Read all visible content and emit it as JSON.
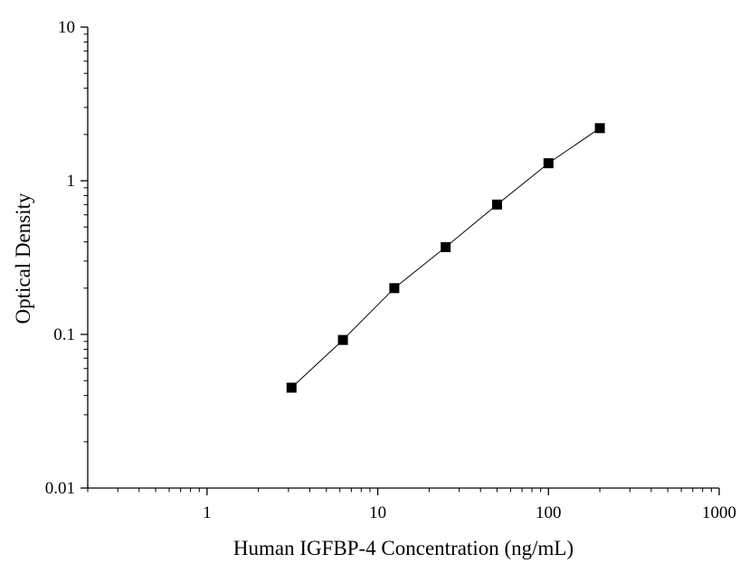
{
  "chart_data": {
    "type": "scatter",
    "xlabel": "Human IGFBP-4 Concentration (ng/mL)",
    "ylabel": "Optical Density",
    "x_scale": "log",
    "y_scale": "log",
    "xlim": [
      0.2,
      1000
    ],
    "ylim": [
      0.01,
      10
    ],
    "x_ticks": [
      {
        "value": 1,
        "label": "1"
      },
      {
        "value": 10,
        "label": "10"
      },
      {
        "value": 100,
        "label": "100"
      },
      {
        "value": 1000,
        "label": "1000"
      }
    ],
    "y_ticks": [
      {
        "value": 0.01,
        "label": "0.01"
      },
      {
        "value": 0.1,
        "label": "0.1"
      },
      {
        "value": 1,
        "label": "1"
      },
      {
        "value": 10,
        "label": "10"
      }
    ],
    "grid": false,
    "marker": "square",
    "marker_color": "#000000",
    "line_color": "#000000",
    "series": [
      {
        "x": [
          3.125,
          6.25,
          12.5,
          25,
          50,
          100,
          200
        ],
        "y": [
          0.045,
          0.092,
          0.2,
          0.37,
          0.7,
          1.3,
          2.2
        ]
      }
    ]
  }
}
